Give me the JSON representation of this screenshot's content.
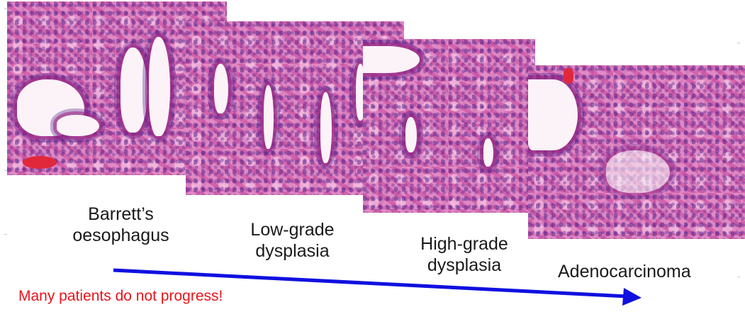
{
  "stages": [
    {
      "label": "Barrett’s\noesophagus"
    },
    {
      "label": "Low-grade\ndysplasia"
    },
    {
      "label": "High-grade\ndysplasia"
    },
    {
      "label": "Adenocarcinoma"
    }
  ],
  "note": {
    "text": "Many patients do not progress!",
    "color": "#e8141c"
  },
  "arrow": {
    "color": "#1010e0"
  }
}
